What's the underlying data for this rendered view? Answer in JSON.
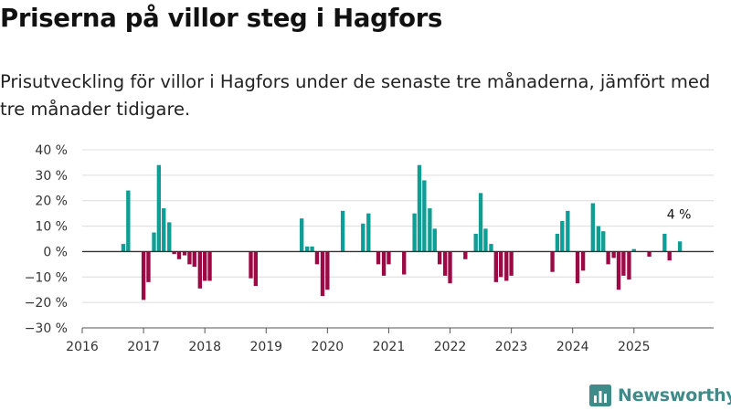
{
  "chart_data": {
    "type": "bar",
    "title": "Priserna på villor steg i Hagfors",
    "subtitle": "Prisutveckling för villor i Hagfors under de senaste tre månaderna, jämfört med tre månader tidigare.",
    "xlabel": "",
    "ylabel": "",
    "ylim": [
      -30,
      40
    ],
    "yticks": [
      -30,
      -20,
      -10,
      0,
      10,
      20,
      30,
      40
    ],
    "ytick_labels": [
      "−30 %",
      "−20 %",
      "−10 %",
      "0 %",
      "10 %",
      "20 %",
      "30 %",
      "40 %"
    ],
    "xlim": [
      2016,
      2026.3
    ],
    "xticks": [
      2016,
      2017,
      2018,
      2019,
      2020,
      2021,
      2022,
      2023,
      2024,
      2025
    ],
    "xtick_labels": [
      "2016",
      "2017",
      "2018",
      "2019",
      "2020",
      "2021",
      "2022",
      "2023",
      "2024",
      "2025"
    ],
    "grid": true,
    "bar_width_years": 0.065,
    "positive_color": "#0f9e95",
    "negative_color": "#9c0a45",
    "series": [
      {
        "name": "Prisutveckling",
        "x": [
          2016.67,
          2016.75,
          2017.0,
          2017.08,
          2017.17,
          2017.25,
          2017.33,
          2017.42,
          2017.5,
          2017.58,
          2017.67,
          2017.75,
          2017.83,
          2017.92,
          2018.0,
          2018.08,
          2018.75,
          2018.83,
          2019.58,
          2019.67,
          2019.75,
          2019.83,
          2019.92,
          2020.0,
          2020.25,
          2020.58,
          2020.67,
          2020.83,
          2020.92,
          2021.0,
          2021.25,
          2021.42,
          2021.5,
          2021.58,
          2021.67,
          2021.75,
          2021.83,
          2021.92,
          2022.0,
          2022.25,
          2022.42,
          2022.5,
          2022.58,
          2022.67,
          2022.75,
          2022.83,
          2022.92,
          2023.0,
          2023.67,
          2023.75,
          2023.83,
          2023.92,
          2024.08,
          2024.17,
          2024.33,
          2024.42,
          2024.5,
          2024.58,
          2024.67,
          2024.75,
          2024.83,
          2024.92,
          2025.0,
          2025.25,
          2025.5,
          2025.58,
          2025.75
        ],
        "values": [
          3,
          24,
          -19,
          -12,
          7.5,
          34,
          17,
          11.5,
          -1,
          -3,
          -1.5,
          -5,
          -6,
          -14.5,
          -11.5,
          -11.5,
          -10.5,
          -13.5,
          13,
          2,
          2,
          -5,
          -17.5,
          -15,
          16,
          11,
          15,
          -5,
          -9.5,
          -5,
          -9,
          15,
          34,
          28,
          17,
          9,
          -5,
          -9.5,
          -12.5,
          -3,
          7,
          23,
          9,
          3,
          -12,
          -10,
          -11.5,
          -9.5,
          -8,
          7,
          12,
          16,
          -12.5,
          -7.5,
          19,
          10,
          8,
          -5,
          -2.5,
          -15,
          -9.5,
          -11,
          1,
          -2,
          7,
          -3.5,
          4
        ]
      }
    ],
    "annotations": [
      {
        "text": "4 %",
        "x": 2025.75,
        "value": 4
      }
    ]
  },
  "brand": {
    "name": "Newsworthy",
    "logo_icon": "bar-chart-logo-icon"
  }
}
